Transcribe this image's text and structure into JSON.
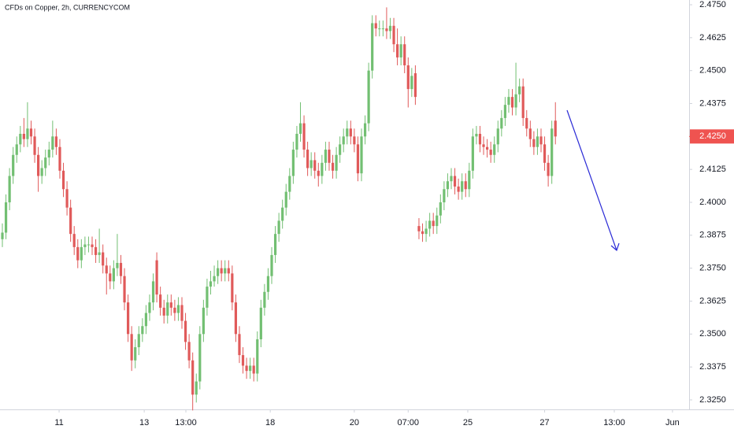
{
  "chart_data": {
    "type": "candlestick",
    "title": "CFDs on Copper, 2h, CURRENCYCOM",
    "up_color": "#72bf72",
    "down_color": "#e05a5a",
    "grid": false,
    "xlim": [
      -0.66,
      191.23
    ],
    "xticks": [
      {
        "value": 15.8,
        "label": "11"
      },
      {
        "value": 39.5,
        "label": "13"
      },
      {
        "value": 51.1,
        "label": "13:00"
      },
      {
        "value": 74.6,
        "label": "18"
      },
      {
        "value": 98,
        "label": "20"
      },
      {
        "value": 113,
        "label": "07:00"
      },
      {
        "value": 129.6,
        "label": "25"
      },
      {
        "value": 151,
        "label": "27"
      },
      {
        "value": 170.4,
        "label": "13:00"
      },
      {
        "value": 186.6,
        "label": "Jun"
      }
    ],
    "ylim": [
      2.3214,
      2.4768
    ],
    "yticks": [
      {
        "value": 2.325,
        "label": "2.3250"
      },
      {
        "value": 2.3375,
        "label": "2.3375"
      },
      {
        "value": 2.35,
        "label": "2.3500"
      },
      {
        "value": 2.3625,
        "label": "2.3625"
      },
      {
        "value": 2.375,
        "label": "2.3750"
      },
      {
        "value": 2.3875,
        "label": "2.3875"
      },
      {
        "value": 2.4,
        "label": "2.4000"
      },
      {
        "value": 2.4125,
        "label": "2.4125"
      },
      {
        "value": 2.425,
        "label": "2.4250"
      },
      {
        "value": 2.4375,
        "label": "2.4375"
      },
      {
        "value": 2.45,
        "label": "2.4500"
      },
      {
        "value": 2.4625,
        "label": "2.4625"
      },
      {
        "value": 2.475,
        "label": "2.4750"
      }
    ],
    "last_price": {
      "value": 2.425,
      "label": "2.4250",
      "color": "#ef5350"
    },
    "open": [
      2.386,
      2.3885,
      2.4,
      2.41,
      2.418,
      2.422,
      2.426,
      2.424,
      2.428,
      2.425,
      2.418,
      2.41,
      2.413,
      2.417,
      2.42,
      2.425,
      2.421,
      2.412,
      2.405,
      2.398,
      2.388,
      2.383,
      2.378,
      2.383,
      2.384,
      2.384,
      2.383,
      2.38,
      2.381,
      2.376,
      2.373,
      2.37,
      2.375,
      2.377,
      2.372,
      2.362,
      2.35,
      2.34,
      2.345,
      2.35,
      2.353,
      2.358,
      2.362,
      2.378,
      2.365,
      2.36,
      2.357,
      2.362,
      2.36,
      2.358,
      2.361,
      2.355,
      2.347,
      2.34,
      2.327,
      2.332,
      2.35,
      2.36,
      2.368,
      2.37,
      2.372,
      2.375,
      2.373,
      2.375,
      2.373,
      2.362,
      2.35,
      2.342,
      2.338,
      2.336,
      2.338,
      2.335,
      2.348,
      2.36,
      2.366,
      2.372,
      2.38,
      2.388,
      2.393,
      2.398,
      2.404,
      2.41,
      2.42,
      2.426,
      2.43,
      2.42,
      2.413,
      2.416,
      2.412,
      2.41,
      2.415,
      2.42,
      2.415,
      2.412,
      2.418,
      2.422,
      2.425,
      2.428,
      2.425,
      2.422,
      2.411,
      2.425,
      2.43,
      2.45,
      2.468,
      2.466,
      2.466,
      2.466,
      2.465,
      2.467,
      2.46,
      2.455,
      2.46,
      2.452,
      2.443,
      2.449,
      2.391,
      2.389,
      2.388,
      2.39,
      2.393,
      2.391,
      2.395,
      2.4,
      2.405,
      2.408,
      2.41,
      2.406,
      2.404,
      2.408,
      2.405,
      2.412,
      2.425,
      2.426,
      2.422,
      2.421,
      2.42,
      2.418,
      2.422,
      2.428,
      2.432,
      2.437,
      2.44,
      2.436,
      2.441,
      2.444,
      2.432,
      2.428,
      2.424,
      2.421,
      2.425,
      2.422,
      2.415,
      2.41,
      2.431
    ],
    "high": [
      2.392,
      2.403,
      2.413,
      2.421,
      2.425,
      2.429,
      2.432,
      2.438,
      2.431,
      2.428,
      2.421,
      2.416,
      2.42,
      2.423,
      2.431,
      2.428,
      2.424,
      2.415,
      2.408,
      2.401,
      2.391,
      2.386,
      2.386,
      2.387,
      2.387,
      2.387,
      2.386,
      2.39,
      2.384,
      2.379,
      2.376,
      2.378,
      2.388,
      2.38,
      2.375,
      2.365,
      2.353,
      2.348,
      2.353,
      2.356,
      2.361,
      2.365,
      2.373,
      2.381,
      2.368,
      2.363,
      2.365,
      2.365,
      2.363,
      2.364,
      2.364,
      2.358,
      2.35,
      2.343,
      2.335,
      2.353,
      2.363,
      2.371,
      2.374,
      2.376,
      2.378,
      2.378,
      2.378,
      2.378,
      2.376,
      2.365,
      2.353,
      2.345,
      2.341,
      2.341,
      2.341,
      2.351,
      2.363,
      2.369,
      2.375,
      2.383,
      2.391,
      2.396,
      2.401,
      2.407,
      2.413,
      2.423,
      2.429,
      2.438,
      2.433,
      2.423,
      2.419,
      2.419,
      2.415,
      2.418,
      2.423,
      2.423,
      2.418,
      2.421,
      2.425,
      2.428,
      2.431,
      2.431,
      2.428,
      2.425,
      2.428,
      2.433,
      2.453,
      2.471,
      2.471,
      2.469,
      2.469,
      2.474,
      2.47,
      2.47,
      2.466,
      2.463,
      2.463,
      2.455,
      2.451,
      2.452,
      2.394,
      2.392,
      2.393,
      2.396,
      2.396,
      2.398,
      2.403,
      2.408,
      2.411,
      2.413,
      2.413,
      2.409,
      2.411,
      2.411,
      2.415,
      2.428,
      2.429,
      2.429,
      2.425,
      2.424,
      2.423,
      2.425,
      2.431,
      2.435,
      2.44,
      2.443,
      2.443,
      2.453,
      2.447,
      2.447,
      2.435,
      2.431,
      2.427,
      2.428,
      2.428,
      2.425,
      2.418,
      2.431,
      2.438
    ],
    "low": [
      2.383,
      2.386,
      2.397,
      2.407,
      2.415,
      2.419,
      2.421,
      2.421,
      2.422,
      2.415,
      2.404,
      2.407,
      2.41,
      2.414,
      2.417,
      2.418,
      2.409,
      2.402,
      2.395,
      2.385,
      2.38,
      2.375,
      2.375,
      2.38,
      2.381,
      2.38,
      2.377,
      2.377,
      2.373,
      2.365,
      2.367,
      2.367,
      2.372,
      2.369,
      2.359,
      2.347,
      2.336,
      2.337,
      2.342,
      2.347,
      2.35,
      2.355,
      2.359,
      2.362,
      2.357,
      2.354,
      2.354,
      2.357,
      2.355,
      2.355,
      2.352,
      2.344,
      2.337,
      2.321,
      2.324,
      2.329,
      2.347,
      2.357,
      2.365,
      2.368,
      2.369,
      2.37,
      2.37,
      2.37,
      2.359,
      2.347,
      2.339,
      2.335,
      2.333,
      2.333,
      2.332,
      2.332,
      2.345,
      2.357,
      2.363,
      2.369,
      2.377,
      2.385,
      2.39,
      2.395,
      2.401,
      2.407,
      2.417,
      2.423,
      2.417,
      2.41,
      2.41,
      2.409,
      2.406,
      2.407,
      2.412,
      2.412,
      2.409,
      2.409,
      2.415,
      2.419,
      2.422,
      2.422,
      2.419,
      2.408,
      2.408,
      2.422,
      2.427,
      2.447,
      2.463,
      2.463,
      2.463,
      2.462,
      2.462,
      2.457,
      2.452,
      2.452,
      2.449,
      2.436,
      2.44,
      2.437,
      2.386,
      2.385,
      2.385,
      2.387,
      2.388,
      2.388,
      2.392,
      2.397,
      2.402,
      2.405,
      2.403,
      2.401,
      2.401,
      2.402,
      2.402,
      2.409,
      2.422,
      2.419,
      2.418,
      2.417,
      2.415,
      2.415,
      2.419,
      2.425,
      2.429,
      2.434,
      2.433,
      2.433,
      2.438,
      2.429,
      2.425,
      2.421,
      2.418,
      2.418,
      2.419,
      2.412,
      2.406,
      2.407,
      2.422
    ],
    "close": [
      2.3885,
      2.4,
      2.41,
      2.418,
      2.422,
      2.426,
      2.424,
      2.428,
      2.425,
      2.418,
      2.41,
      2.413,
      2.417,
      2.42,
      2.425,
      2.421,
      2.412,
      2.405,
      2.398,
      2.388,
      2.383,
      2.378,
      2.383,
      2.384,
      2.384,
      2.383,
      2.38,
      2.381,
      2.376,
      2.373,
      2.37,
      2.375,
      2.377,
      2.372,
      2.362,
      2.35,
      2.34,
      2.345,
      2.35,
      2.353,
      2.358,
      2.362,
      2.37,
      2.365,
      2.36,
      2.357,
      2.362,
      2.36,
      2.358,
      2.361,
      2.355,
      2.347,
      2.34,
      2.327,
      2.332,
      2.35,
      2.36,
      2.368,
      2.37,
      2.372,
      2.375,
      2.373,
      2.375,
      2.373,
      2.362,
      2.35,
      2.342,
      2.338,
      2.336,
      2.338,
      2.335,
      2.348,
      2.36,
      2.366,
      2.372,
      2.38,
      2.388,
      2.393,
      2.398,
      2.404,
      2.41,
      2.42,
      2.426,
      2.43,
      2.42,
      2.413,
      2.416,
      2.412,
      2.41,
      2.415,
      2.42,
      2.415,
      2.412,
      2.418,
      2.422,
      2.425,
      2.428,
      2.425,
      2.422,
      2.411,
      2.425,
      2.43,
      2.45,
      2.468,
      2.466,
      2.466,
      2.466,
      2.465,
      2.467,
      2.46,
      2.455,
      2.46,
      2.452,
      2.443,
      2.448,
      2.44,
      2.389,
      2.388,
      2.39,
      2.393,
      2.391,
      2.395,
      2.4,
      2.405,
      2.408,
      2.41,
      2.406,
      2.404,
      2.408,
      2.405,
      2.412,
      2.425,
      2.426,
      2.422,
      2.421,
      2.42,
      2.418,
      2.422,
      2.428,
      2.432,
      2.437,
      2.44,
      2.436,
      2.441,
      2.444,
      2.432,
      2.428,
      2.424,
      2.421,
      2.425,
      2.422,
      2.415,
      2.41,
      2.428,
      2.425
    ]
  }
}
